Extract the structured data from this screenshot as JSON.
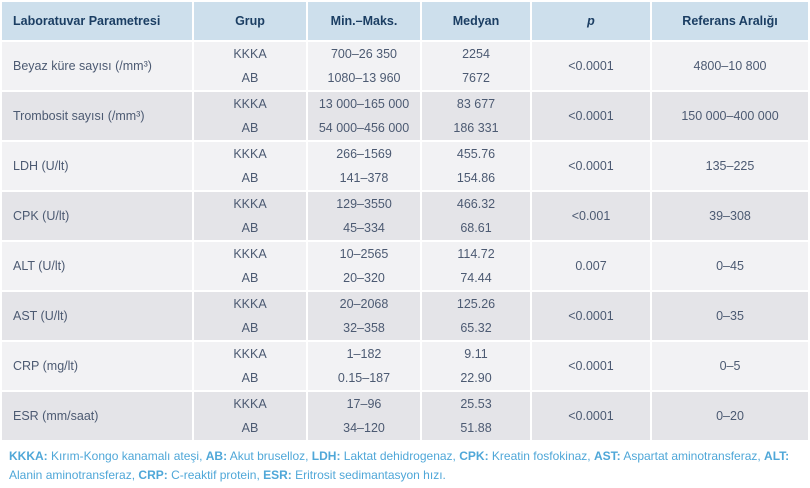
{
  "colors": {
    "header_bg": "#cddfec",
    "header_text": "#1b3e63",
    "row_light_bg": "#f2f2f4",
    "row_dark_bg": "#e4e4e8",
    "cell_text": "#4c5a72",
    "footnote_text": "#4fa7d8",
    "separator": "#ffffff"
  },
  "table": {
    "headers": [
      "Laboratuvar Parametresi",
      "Grup",
      "Min.–Maks.",
      "Medyan",
      "p",
      "Referans Aralığı"
    ],
    "rows": [
      {
        "parameter": "Beyaz küre sayısı (/mm³)",
        "groups": [
          {
            "grup": "KKKA",
            "min_maks": "700–26 350",
            "medyan": "2254"
          },
          {
            "grup": "AB",
            "min_maks": "1080–13 960",
            "medyan": "7672"
          }
        ],
        "p": "<0.0001",
        "referans": "4800–10 800"
      },
      {
        "parameter": "Trombosit sayısı (/mm³)",
        "groups": [
          {
            "grup": "KKKA",
            "min_maks": "13 000–165 000",
            "medyan": "83 677"
          },
          {
            "grup": "AB",
            "min_maks": "54 000–456 000",
            "medyan": "186 331"
          }
        ],
        "p": "<0.0001",
        "referans": "150 000–400 000"
      },
      {
        "parameter": "LDH (U/lt)",
        "groups": [
          {
            "grup": "KKKA",
            "min_maks": "266–1569",
            "medyan": "455.76"
          },
          {
            "grup": "AB",
            "min_maks": "141–378",
            "medyan": "154.86"
          }
        ],
        "p": "<0.0001",
        "referans": "135–225"
      },
      {
        "parameter": "CPK (U/lt)",
        "groups": [
          {
            "grup": "KKKA",
            "min_maks": "129–3550",
            "medyan": "466.32"
          },
          {
            "grup": "AB",
            "min_maks": "45–334",
            "medyan": "68.61"
          }
        ],
        "p": "<0.001",
        "referans": "39–308"
      },
      {
        "parameter": "ALT (U/lt)",
        "groups": [
          {
            "grup": "KKKA",
            "min_maks": "10–2565",
            "medyan": "114.72"
          },
          {
            "grup": "AB",
            "min_maks": "20–320",
            "medyan": "74.44"
          }
        ],
        "p": "0.007",
        "referans": "0–45"
      },
      {
        "parameter": "AST (U/lt)",
        "groups": [
          {
            "grup": "KKKA",
            "min_maks": "20–2068",
            "medyan": "125.26"
          },
          {
            "grup": "AB",
            "min_maks": "32–358",
            "medyan": "65.32"
          }
        ],
        "p": "<0.0001",
        "referans": "0–35"
      },
      {
        "parameter": "CRP (mg/lt)",
        "groups": [
          {
            "grup": "KKKA",
            "min_maks": "1–182",
            "medyan": "9.11"
          },
          {
            "grup": "AB",
            "min_maks": "0.15–187",
            "medyan": "22.90"
          }
        ],
        "p": "<0.0001",
        "referans": "0–5"
      },
      {
        "parameter": "ESR (mm/saat)",
        "groups": [
          {
            "grup": "KKKA",
            "min_maks": "17–96",
            "medyan": "25.53"
          },
          {
            "grup": "AB",
            "min_maks": "34–120",
            "medyan": "51.88"
          }
        ],
        "p": "<0.0001",
        "referans": "0–20"
      }
    ]
  },
  "footnote": {
    "segments": [
      {
        "abbr": "KKKA:",
        "text": " Kırım-Kongo kanamalı ateşi, "
      },
      {
        "abbr": "AB:",
        "text": " Akut bruselloz, "
      },
      {
        "abbr": "LDH:",
        "text": " Laktat dehidrogenaz, "
      },
      {
        "abbr": "CPK:",
        "text": " Kreatin fosfokinaz, "
      },
      {
        "abbr": "AST:",
        "text": " Aspartat aminotransferaz, "
      },
      {
        "abbr": "ALT:",
        "text": " Alanin aminotransferaz, "
      },
      {
        "abbr": "CRP:",
        "text": " C-reaktif protein, "
      },
      {
        "abbr": "ESR:",
        "text": " Eritrosit sedimantasyon hızı. "
      }
    ]
  }
}
